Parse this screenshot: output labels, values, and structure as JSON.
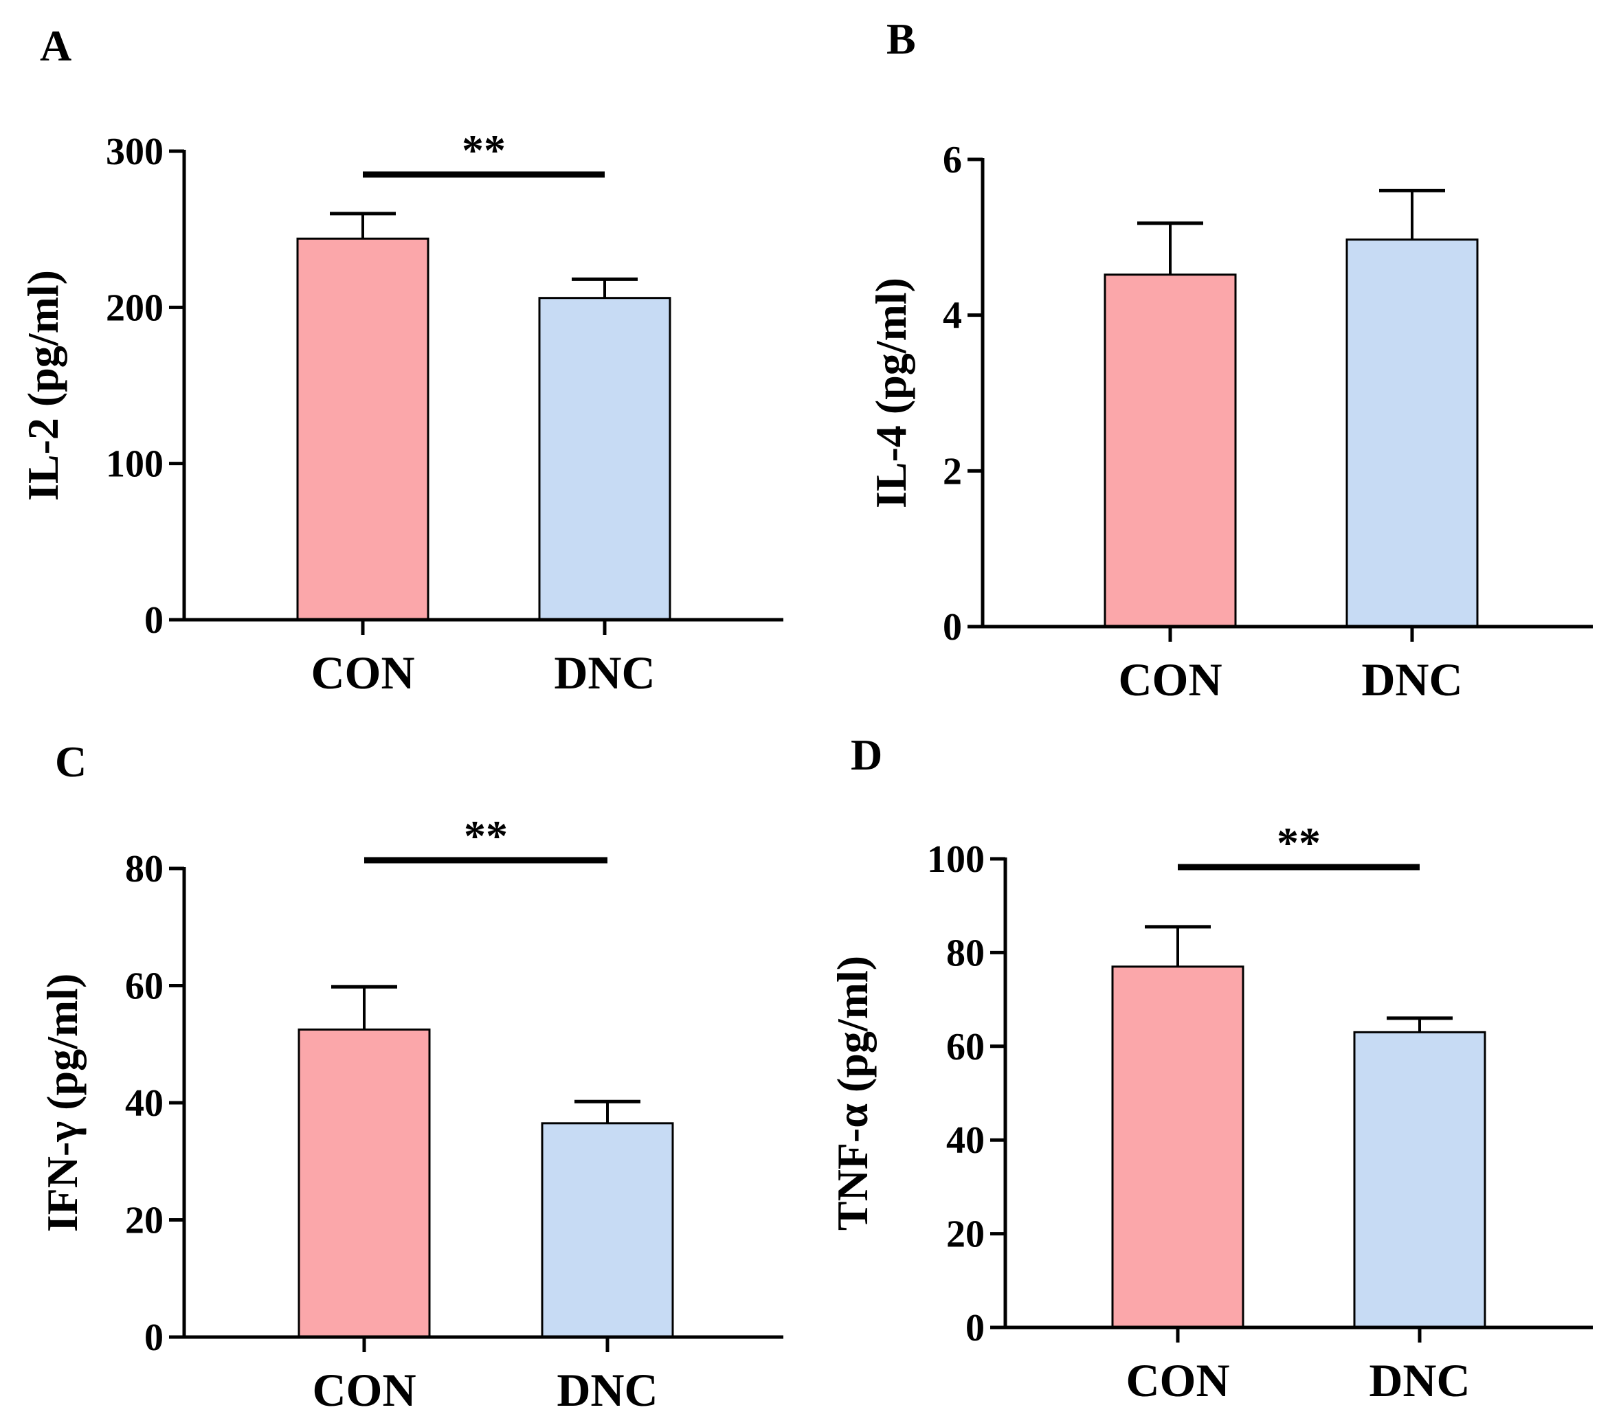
{
  "chart_data": [
    {
      "panel": "A",
      "type": "bar",
      "categories": [
        "CON",
        "DNC"
      ],
      "values": [
        244,
        206
      ],
      "error": [
        16,
        12
      ],
      "ylabel": "IL-2 (pg/ml)",
      "ylim": [
        0,
        300
      ],
      "yticks": [
        0,
        100,
        200,
        300
      ],
      "significance": "**"
    },
    {
      "panel": "B",
      "type": "bar",
      "categories": [
        "CON",
        "DNC"
      ],
      "values": [
        4.52,
        4.97
      ],
      "error": [
        0.66,
        0.63
      ],
      "ylabel": "IL-4 (pg/ml)",
      "ylim": [
        0,
        6
      ],
      "yticks": [
        0,
        2,
        4,
        6
      ],
      "significance": ""
    },
    {
      "panel": "C",
      "type": "bar",
      "categories": [
        "CON",
        "DNC"
      ],
      "values": [
        52.5,
        36.5
      ],
      "error": [
        7.3,
        3.7
      ],
      "ylabel": "IFN-γ (pg/ml)",
      "ylim": [
        0,
        80
      ],
      "yticks": [
        0,
        20,
        40,
        60,
        80
      ],
      "significance": "**"
    },
    {
      "panel": "D",
      "type": "bar",
      "categories": [
        "CON",
        "DNC"
      ],
      "values": [
        77,
        63
      ],
      "error": [
        8.5,
        3
      ],
      "ylabel": "TNF-α (pg/ml)",
      "ylim": [
        0,
        100
      ],
      "yticks": [
        0,
        20,
        40,
        60,
        80,
        100
      ],
      "significance": "**"
    }
  ],
  "colors": {
    "con_fill": "#fba7aa",
    "dnc_fill": "#c7dbf4",
    "stroke": "#000000"
  }
}
